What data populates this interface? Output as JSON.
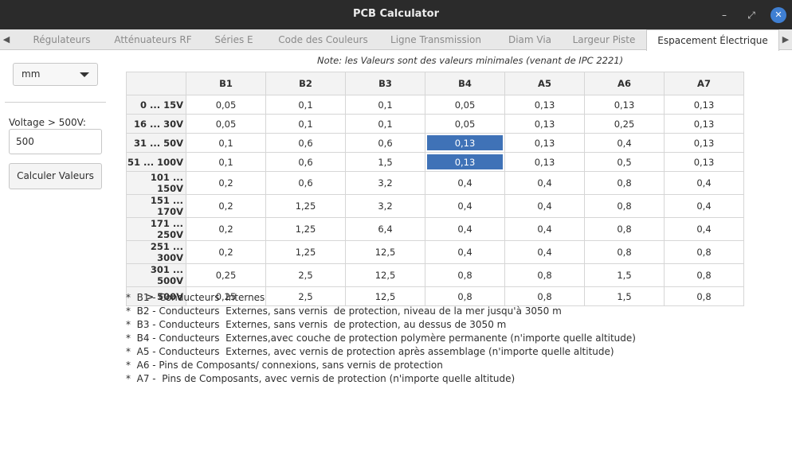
{
  "window": {
    "title": "PCB Calculator",
    "min_icon": "–",
    "max_icon": "⤢",
    "close_icon": "✕"
  },
  "tabs": [
    {
      "label": "Régulateurs",
      "active": false
    },
    {
      "label": "Atténuateurs RF",
      "active": false
    },
    {
      "label": "Séries E",
      "active": false
    },
    {
      "label": "Code des Couleurs",
      "active": false
    },
    {
      "label": "Ligne Transmission",
      "active": false
    },
    {
      "label": "Diam Via",
      "active": false
    },
    {
      "label": "Largeur Piste",
      "active": false
    },
    {
      "label": "Espacement Électrique",
      "active": true
    }
  ],
  "sidebar": {
    "unit": "mm",
    "voltage_label": "Voltage > 500V:",
    "voltage_value": "500",
    "calc_button": "Calculer Valeurs"
  },
  "note": "Note: les Valeurs sont des valeurs minimales (venant de IPC 2221)",
  "table": {
    "headers": [
      "B1",
      "B2",
      "B3",
      "B4",
      "A5",
      "A6",
      "A7"
    ],
    "rows": [
      {
        "label": "0 ... 15V",
        "values": [
          "0,05",
          "0,1",
          "0,1",
          "0,05",
          "0,13",
          "0,13",
          "0,13"
        ]
      },
      {
        "label": "16 ... 30V",
        "values": [
          "0,05",
          "0,1",
          "0,1",
          "0,05",
          "0,13",
          "0,25",
          "0,13"
        ]
      },
      {
        "label": "31 ... 50V",
        "values": [
          "0,1",
          "0,6",
          "0,6",
          "0,13",
          "0,13",
          "0,4",
          "0,13"
        ]
      },
      {
        "label": "51 ... 100V",
        "values": [
          "0,1",
          "0,6",
          "1,5",
          "0,13",
          "0,13",
          "0,5",
          "0,13"
        ]
      },
      {
        "label": "101 ... 150V",
        "values": [
          "0,2",
          "0,6",
          "3,2",
          "0,4",
          "0,4",
          "0,8",
          "0,4"
        ]
      },
      {
        "label": "151 ... 170V",
        "values": [
          "0,2",
          "1,25",
          "3,2",
          "0,4",
          "0,4",
          "0,8",
          "0,4"
        ]
      },
      {
        "label": "171 ... 250V",
        "values": [
          "0,2",
          "1,25",
          "6,4",
          "0,4",
          "0,4",
          "0,8",
          "0,4"
        ]
      },
      {
        "label": "251 ... 300V",
        "values": [
          "0,2",
          "1,25",
          "12,5",
          "0,4",
          "0,4",
          "0,8",
          "0,8"
        ]
      },
      {
        "label": "301 ... 500V",
        "values": [
          "0,25",
          "2,5",
          "12,5",
          "0,8",
          "0,8",
          "1,5",
          "0,8"
        ]
      },
      {
        "label": "> 500V",
        "values": [
          "0,25",
          "2,5",
          "12,5",
          "0,8",
          "0,8",
          "1,5",
          "0,8"
        ]
      }
    ],
    "selected_color": "#3f72b7"
  },
  "legend": [
    "*  B1 - Conducteurs  Internes",
    "*  B2 - Conducteurs  Externes, sans vernis  de protection, niveau de la mer jusqu'à 3050 m",
    "*  B3 - Conducteurs  Externes, sans vernis  de protection, au dessus de 3050 m",
    "*  B4 - Conducteurs  Externes,avec couche de protection polymère permanente (n'importe quelle altitude)",
    "*  A5 - Conducteurs  Externes, avec vernis de protection après assemblage (n'importe quelle altitude)",
    "*  A6 - Pins de Composants/ connexions, sans vernis de protection",
    "*  A7 -  Pins de Composants, avec vernis de protection (n'importe quelle altitude)"
  ]
}
